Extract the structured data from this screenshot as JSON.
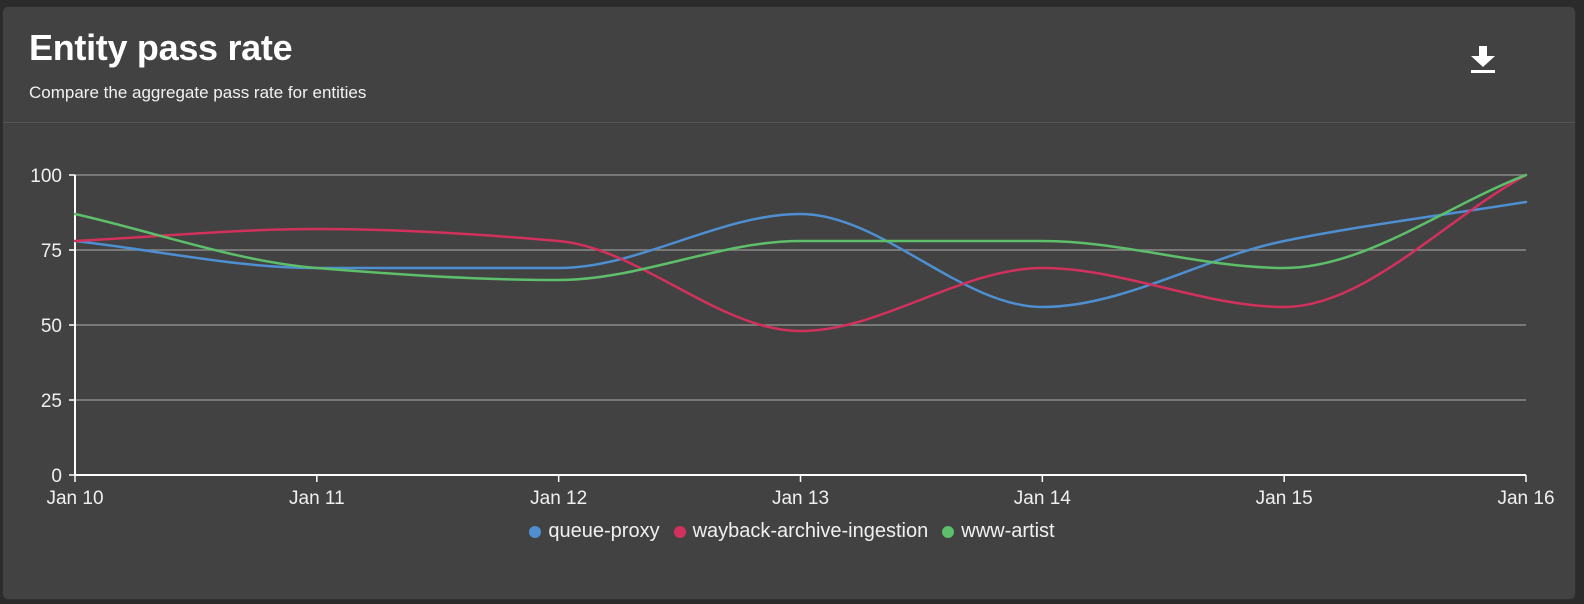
{
  "card": {
    "title": "Entity pass rate",
    "subtitle": "Compare the aggregate pass rate for entities",
    "download_icon": "download-icon"
  },
  "colors": {
    "background": "#424242",
    "axis": "#ffffff",
    "grid": "#8a8a8a"
  },
  "chart_data": {
    "type": "line",
    "smooth": true,
    "title": "",
    "xlabel": "",
    "ylabel": "",
    "categories": [
      "Jan 10",
      "Jan 11",
      "Jan 12",
      "Jan 13",
      "Jan 14",
      "Jan 15",
      "Jan 16"
    ],
    "ylim": [
      0,
      100
    ],
    "yticks": [
      0,
      25,
      50,
      75,
      100
    ],
    "grid": true,
    "legend_position": "bottom-center",
    "series": [
      {
        "name": "queue-proxy",
        "color": "#4e8fd1",
        "values": [
          78,
          69,
          69,
          87,
          56,
          78,
          91
        ]
      },
      {
        "name": "wayback-archive-ingestion",
        "color": "#d2315d",
        "values": [
          78,
          82,
          78,
          48,
          69,
          56,
          100
        ]
      },
      {
        "name": "www-artist",
        "color": "#5ebf6a",
        "values": [
          87,
          69,
          65,
          78,
          78,
          69,
          100
        ]
      }
    ]
  }
}
